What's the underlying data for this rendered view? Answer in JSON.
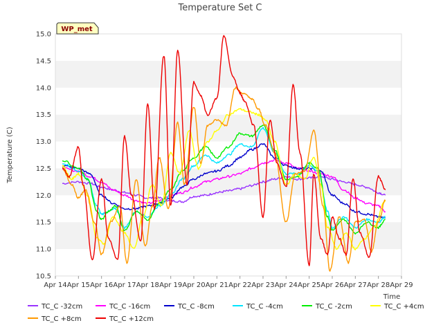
{
  "chart_data": {
    "type": "line",
    "title": "Temperature Set C",
    "xlabel": "Time",
    "ylabel": "Temperature (C)",
    "ylim": [
      10.5,
      15.0
    ],
    "xlim": [
      14,
      29
    ],
    "yticks": [
      "10.5",
      "11.0",
      "11.5",
      "12.0",
      "12.5",
      "13.0",
      "13.5",
      "14.0",
      "14.5",
      "15.0"
    ],
    "xticks": [
      "Apr 14",
      "Apr 15",
      "Apr 16",
      "Apr 17",
      "Apr 18",
      "Apr 19",
      "Apr 20",
      "Apr 21",
      "Apr 22",
      "Apr 23",
      "Apr 24",
      "Apr 25",
      "Apr 26",
      "Apr 27",
      "Apr 28",
      "Apr 29"
    ],
    "grid": "horizontal bands",
    "legend_position": "bottom",
    "badge": "WP_met",
    "series": [
      {
        "name": "TC_C -32cm",
        "color": "#9933ff",
        "x": [
          14.3,
          15,
          15.5,
          16,
          16.5,
          17,
          17.5,
          18,
          18.5,
          19,
          19.5,
          20,
          20.5,
          21,
          21.5,
          22,
          22.5,
          23,
          23.5,
          24,
          24.5,
          25,
          25.5,
          26,
          26.5,
          27,
          27.5,
          28,
          28.3
        ],
        "y": [
          12.22,
          12.25,
          12.22,
          12.15,
          12.1,
          12.05,
          12.0,
          11.95,
          11.95,
          11.9,
          11.88,
          11.98,
          12.0,
          12.05,
          12.08,
          12.12,
          12.18,
          12.25,
          12.3,
          12.35,
          12.3,
          12.32,
          12.35,
          12.3,
          12.25,
          12.2,
          12.15,
          12.05,
          12.0
        ]
      },
      {
        "name": "TC_C -16cm",
        "color": "#ff00ff",
        "x": [
          14.3,
          15,
          15.5,
          16,
          16.5,
          17,
          17.5,
          18,
          18.5,
          19,
          19.5,
          20,
          20.5,
          21,
          21.5,
          22,
          22.5,
          23,
          23.5,
          24,
          24.5,
          25,
          25.5,
          26,
          26.5,
          27,
          27.5,
          28,
          28.3
        ],
        "y": [
          12.5,
          12.45,
          12.35,
          12.25,
          12.1,
          12.0,
          11.9,
          11.85,
          11.9,
          12.0,
          12.05,
          12.15,
          12.25,
          12.3,
          12.35,
          12.4,
          12.5,
          12.6,
          12.65,
          12.6,
          12.5,
          12.45,
          12.4,
          12.35,
          12.1,
          11.95,
          11.85,
          11.8,
          11.7
        ]
      },
      {
        "name": "TC_C -8cm",
        "color": "#0000cc",
        "x": [
          14.3,
          15,
          15.5,
          16,
          16.5,
          17,
          17.5,
          18,
          18.5,
          19,
          19.5,
          20,
          20.5,
          21,
          21.5,
          22,
          22.5,
          23,
          23.5,
          24,
          24.5,
          25,
          25.5,
          26,
          26.5,
          27,
          27.5,
          28,
          28.3
        ],
        "y": [
          12.55,
          12.5,
          12.4,
          12.0,
          11.85,
          11.75,
          11.75,
          11.8,
          11.85,
          11.95,
          12.15,
          12.3,
          12.4,
          12.45,
          12.55,
          12.7,
          12.85,
          12.95,
          12.7,
          12.55,
          12.5,
          12.5,
          12.45,
          12.0,
          11.85,
          11.7,
          11.65,
          11.6,
          11.58
        ]
      },
      {
        "name": "TC_C -4cm",
        "color": "#00e5ff",
        "x": [
          14.3,
          15,
          15.4,
          15.8,
          16,
          16.3,
          16.6,
          17,
          17.5,
          18,
          18.5,
          19,
          19.5,
          20,
          20.5,
          21,
          21.5,
          22,
          22.5,
          23,
          23.5,
          24,
          24.5,
          25,
          25.4,
          25.8,
          26,
          26.5,
          27,
          27.5,
          28,
          28.3
        ],
        "y": [
          12.6,
          12.45,
          12.3,
          11.8,
          11.65,
          11.7,
          11.75,
          11.4,
          11.7,
          11.6,
          11.8,
          12.0,
          12.3,
          12.55,
          12.75,
          12.6,
          12.75,
          12.95,
          12.9,
          13.25,
          12.8,
          12.4,
          12.4,
          12.55,
          12.45,
          11.7,
          11.4,
          11.6,
          11.4,
          11.55,
          11.5,
          11.6
        ]
      },
      {
        "name": "TC_C -2cm",
        "color": "#00ee00",
        "x": [
          14.3,
          15,
          15.4,
          15.8,
          16,
          16.3,
          16.6,
          17,
          17.5,
          18,
          18.5,
          19,
          19.5,
          20,
          20.5,
          21,
          21.5,
          22,
          22.5,
          23,
          23.5,
          24,
          24.5,
          25,
          25.4,
          25.8,
          26,
          26.5,
          27,
          27.5,
          28,
          28.3
        ],
        "y": [
          12.65,
          12.5,
          12.3,
          11.7,
          11.55,
          11.7,
          11.8,
          11.35,
          11.7,
          11.55,
          11.85,
          12.1,
          12.45,
          12.7,
          12.9,
          12.7,
          12.9,
          13.15,
          13.1,
          13.3,
          12.85,
          12.3,
          12.35,
          12.6,
          12.5,
          11.6,
          11.35,
          11.55,
          11.3,
          11.5,
          11.4,
          11.55
        ]
      },
      {
        "name": "TC_C +4cm",
        "color": "#ffff00",
        "x": [
          14.3,
          14.7,
          15,
          15.4,
          15.8,
          16.1,
          16.5,
          17,
          17.4,
          17.8,
          18.2,
          18.6,
          19,
          19.4,
          19.8,
          20.2,
          20.6,
          21,
          21.5,
          22,
          22.4,
          22.8,
          23.1,
          23.5,
          24,
          24.4,
          24.8,
          25.2,
          25.5,
          25.8,
          26.2,
          26.6,
          27,
          27.4,
          27.8,
          28.3
        ],
        "y": [
          12.55,
          12.3,
          12.4,
          12.0,
          11.2,
          11.1,
          11.6,
          11.3,
          11.0,
          11.6,
          12.2,
          11.8,
          12.8,
          12.4,
          13.2,
          12.5,
          13.0,
          13.2,
          13.5,
          13.6,
          13.55,
          13.5,
          13.4,
          13.0,
          12.2,
          12.4,
          12.3,
          12.7,
          12.2,
          11.4,
          11.0,
          11.3,
          11.0,
          11.2,
          11.4,
          11.9
        ]
      },
      {
        "name": "TC_C +8cm",
        "color": "#ff9900",
        "x": [
          14.3,
          14.7,
          15,
          15.3,
          15.7,
          16,
          16.4,
          16.8,
          17.1,
          17.5,
          17.9,
          18.2,
          18.5,
          18.9,
          19.3,
          19.6,
          20,
          20.3,
          20.6,
          21,
          21.4,
          21.8,
          22.1,
          22.5,
          22.8,
          23.1,
          23.5,
          24,
          24.4,
          24.8,
          25.2,
          25.6,
          25.9,
          26.3,
          26.7,
          27,
          27.4,
          27.7,
          28,
          28.3
        ],
        "y": [
          12.5,
          12.2,
          11.95,
          12.1,
          11.5,
          10.9,
          11.5,
          11.8,
          10.75,
          12.3,
          11.05,
          11.8,
          12.7,
          11.75,
          13.35,
          12.2,
          13.65,
          12.6,
          13.3,
          13.4,
          13.3,
          14.0,
          13.9,
          13.8,
          13.6,
          13.3,
          12.8,
          11.5,
          12.4,
          12.45,
          13.2,
          11.8,
          10.6,
          11.6,
          10.75,
          11.5,
          11.55,
          10.95,
          11.5,
          11.9
        ]
      },
      {
        "name": "TC_C +12cm",
        "color": "#ee0000",
        "x": [
          14.3,
          14.6,
          15,
          15.2,
          15.6,
          16,
          16.3,
          16.7,
          17,
          17.3,
          17.7,
          18,
          18.3,
          18.7,
          19,
          19.3,
          19.7,
          20,
          20.3,
          20.6,
          21,
          21.3,
          21.7,
          22,
          22.2,
          22.6,
          23,
          23.3,
          23.6,
          24,
          24.3,
          24.6,
          25,
          25.2,
          25.5,
          25.8,
          26,
          26.3,
          26.6,
          26.9,
          27.2,
          27.6,
          28,
          28.3
        ],
        "y": [
          12.5,
          12.35,
          12.9,
          12.2,
          10.8,
          12.3,
          11.2,
          10.8,
          13.1,
          12.0,
          11.15,
          13.7,
          11.75,
          14.6,
          11.8,
          14.7,
          12.2,
          14.1,
          13.85,
          13.5,
          13.8,
          14.95,
          14.2,
          13.9,
          13.75,
          13.3,
          11.6,
          13.4,
          12.6,
          12.15,
          14.05,
          12.8,
          10.7,
          12.4,
          11.2,
          10.9,
          11.6,
          11.2,
          10.9,
          12.3,
          11.3,
          10.85,
          12.35,
          12.1
        ]
      }
    ]
  }
}
